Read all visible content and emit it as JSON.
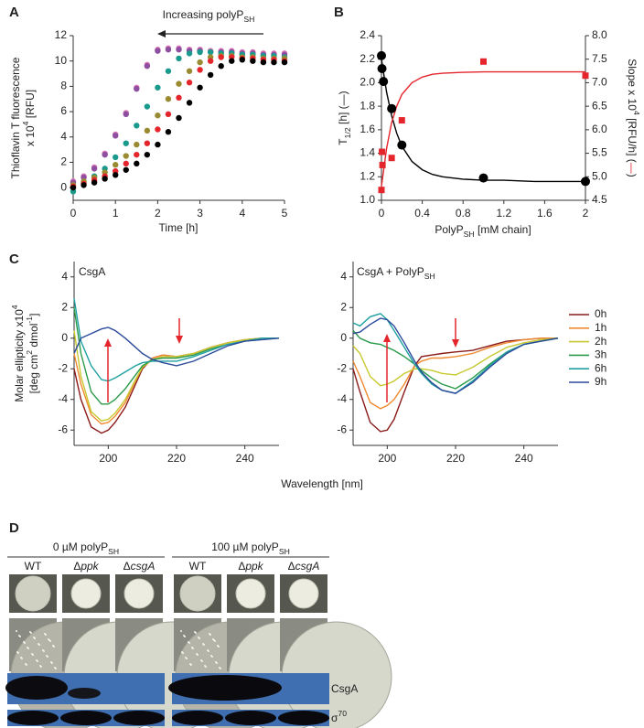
{
  "chart_data": [
    {
      "panel": "A",
      "type": "scatter",
      "x": [
        0,
        0.25,
        0.5,
        0.75,
        1,
        1.25,
        1.5,
        1.75,
        2,
        2.25,
        2.5,
        2.75,
        3,
        3.25,
        3.5,
        3.75,
        4,
        4.25,
        4.5,
        4.75,
        5
      ],
      "series": [
        {
          "color": "#d873b5",
          "values": [
            0.5,
            0.9,
            1.6,
            2.7,
            4.2,
            5.9,
            7.9,
            9.7,
            10.9,
            11,
            11,
            10.9,
            10.9,
            10.8,
            10.8,
            10.8,
            10.7,
            10.7,
            10.6,
            10.6,
            10.6
          ]
        },
        {
          "color": "#8e4fa0",
          "values": [
            0.4,
            0.8,
            1.5,
            2.6,
            4.1,
            5.8,
            7.8,
            9.6,
            10.8,
            10.9,
            10.9,
            10.8,
            10.8,
            10.7,
            10.7,
            10.7,
            10.6,
            10.6,
            10.5,
            10.5,
            10.5
          ]
        },
        {
          "color": "#1a9a8c",
          "values": [
            -0.3,
            0.4,
            0.9,
            1.5,
            2.4,
            3.5,
            4.9,
            6.4,
            7.9,
            9.2,
            10.2,
            10.6,
            10.7,
            10.7,
            10.6,
            10.6,
            10.5,
            10.5,
            10.4,
            10.4,
            10.3
          ]
        },
        {
          "color": "#9a8a32",
          "values": [
            0.2,
            0.5,
            0.8,
            1.2,
            1.8,
            2.5,
            3.4,
            4.5,
            5.7,
            7,
            8.2,
            9.2,
            9.9,
            10.3,
            10.4,
            10.4,
            10.3,
            10.3,
            10.2,
            10.2,
            10.2
          ]
        },
        {
          "color": "#e4262c",
          "values": [
            0.1,
            0.3,
            0.6,
            0.9,
            1.3,
            1.9,
            2.6,
            3.5,
            4.6,
            5.8,
            7.1,
            8.3,
            9.3,
            10,
            10.3,
            10.3,
            10.2,
            10.2,
            10.1,
            10.1,
            10
          ]
        },
        {
          "color": "#000000",
          "values": [
            0,
            0.2,
            0.4,
            0.7,
            1,
            1.4,
            1.9,
            2.6,
            3.4,
            4.4,
            5.5,
            6.7,
            7.9,
            8.9,
            9.6,
            10,
            10.1,
            10,
            9.9,
            9.9,
            9.9
          ]
        }
      ],
      "xlim": [
        0,
        5
      ],
      "xticks": [
        0,
        1,
        2,
        3,
        4,
        5
      ],
      "ylim": [
        -1,
        12
      ],
      "yticks": [
        0,
        2,
        4,
        6,
        8,
        10,
        12
      ],
      "xlabel": "Time [h]",
      "ylabel": [
        "Thioflavin T fluorescence",
        [
          "x 10",
          {
            "sup": "4"
          },
          " [RFU]"
        ]
      ],
      "annotation": [
        "Increasing polyP",
        {
          "sub": "SH"
        }
      ]
    },
    {
      "panel": "B",
      "type": "scatter",
      "series": [
        {
          "type": "line",
          "color": "#000000",
          "x": [
            0,
            0.05,
            0.1,
            0.15,
            0.2,
            0.3,
            0.4,
            0.5,
            0.6,
            0.8,
            1,
            1.2,
            1.5,
            2
          ],
          "values": [
            2.2,
            1.92,
            1.72,
            1.57,
            1.46,
            1.33,
            1.26,
            1.22,
            1.2,
            1.18,
            1.17,
            1.17,
            1.16,
            1.16
          ]
        },
        {
          "type": "line",
          "color": "#e4262c",
          "axis": "y2",
          "x": [
            0,
            0.05,
            0.1,
            0.15,
            0.2,
            0.3,
            0.4,
            0.5,
            0.6,
            0.8,
            1,
            1.2,
            1.5,
            2
          ],
          "values": [
            4.8,
            5.6,
            6.15,
            6.5,
            6.75,
            7,
            7.12,
            7.18,
            7.2,
            7.22,
            7.23,
            7.23,
            7.23,
            7.23
          ]
        },
        {
          "color": "#000000",
          "marker": "circle",
          "x": [
            0,
            0.005,
            0.02,
            0.1,
            0.2,
            1,
            2
          ],
          "values": [
            2.23,
            2.12,
            2.01,
            1.78,
            1.47,
            1.19,
            1.16
          ]
        },
        {
          "color": "#e4262c",
          "marker": "square",
          "axis": "y2",
          "x": [
            0,
            0.005,
            0.01,
            0.1,
            0.2,
            1,
            2
          ],
          "values": [
            4.72,
            5.53,
            5.25,
            5.4,
            6.2,
            7.45,
            7.15
          ]
        }
      ],
      "xlim": [
        0,
        2
      ],
      "xticks": [
        0,
        0.4,
        0.8,
        1.2,
        1.6,
        2
      ],
      "ylim": [
        1,
        2.4
      ],
      "yticks": [
        {
          "value": 1,
          "label": "1.0"
        },
        1.2,
        1.4,
        1.6,
        1.8,
        {
          "value": 2,
          "label": "2.0"
        },
        2.2,
        2.4
      ],
      "y2lim": [
        4.5,
        8
      ],
      "y2ticks": [
        4.5,
        {
          "value": 5,
          "label": "5.0"
        },
        5.5,
        {
          "value": 6,
          "label": "6.0"
        },
        6.5,
        {
          "value": 7,
          "label": "7.0"
        },
        7.5,
        {
          "value": 8,
          "label": "8.0"
        }
      ],
      "xlabel": [
        "PolyP",
        {
          "sub": "SH"
        },
        " [mM chain]"
      ],
      "ylabel": [
        [
          "T",
          {
            "sub": "1/2"
          },
          " [h]  (—)"
        ]
      ],
      "y2label": [
        [
          "Slope x 10",
          {
            "sup": "4"
          },
          " [RFU/h]  (",
          {
            "t": "—",
            "color": "#e4262c"
          },
          ")"
        ]
      ]
    },
    {
      "panel": "C",
      "type": "line",
      "title": "CsgA",
      "x": [
        190,
        192,
        195,
        198,
        200,
        202,
        205,
        208,
        210,
        213,
        216,
        220,
        225,
        230,
        235,
        240,
        245,
        250
      ],
      "series": [
        {
          "color": "#8b1a1a",
          "values": [
            -2,
            -4,
            -5.8,
            -6.2,
            -6,
            -5.5,
            -4.5,
            -3,
            -2,
            -1.3,
            -1.1,
            -1.2,
            -1,
            -0.6,
            -0.3,
            -0.1,
            0,
            0
          ]
        },
        {
          "color": "#f08a30",
          "values": [
            -1,
            -3,
            -5,
            -5.6,
            -5.5,
            -5.1,
            -4.2,
            -2.8,
            -1.9,
            -1.3,
            -1.1,
            -1.2,
            -1,
            -0.6,
            -0.3,
            -0.1,
            0,
            0
          ]
        },
        {
          "color": "#c8c830",
          "values": [
            0.5,
            -2.5,
            -4.8,
            -5.4,
            -5.3,
            -4.9,
            -4,
            -2.7,
            -1.9,
            -1.4,
            -1.2,
            -1.2,
            -1,
            -0.6,
            -0.3,
            -0.1,
            0,
            0
          ]
        },
        {
          "color": "#2a9a4a",
          "values": [
            2,
            -1,
            -3.5,
            -4.3,
            -4.3,
            -4,
            -3.3,
            -2.4,
            -1.8,
            -1.4,
            -1.3,
            -1.3,
            -1.1,
            -0.7,
            -0.4,
            -0.2,
            0,
            0
          ]
        },
        {
          "color": "#20a0a0",
          "values": [
            2.6,
            -0.2,
            -1.8,
            -2.7,
            -2.8,
            -2.6,
            -2.2,
            -1.8,
            -1.6,
            -1.5,
            -1.5,
            -1.5,
            -1.2,
            -0.8,
            -0.4,
            -0.2,
            0,
            0
          ]
        },
        {
          "color": "#2a4a9a",
          "values": [
            -1,
            0,
            0.3,
            0.6,
            0.7,
            0.5,
            0,
            -0.6,
            -1,
            -1.4,
            -1.6,
            -1.8,
            -1.5,
            -1,
            -0.5,
            -0.2,
            -0.1,
            0
          ]
        }
      ],
      "xlim": [
        190,
        250
      ],
      "xticks": [
        200,
        220,
        240
      ],
      "ylim": [
        -7,
        5
      ],
      "yticks": [
        -6,
        -4,
        -2,
        0,
        2,
        4
      ],
      "xlabel": "Wavelength [nm]",
      "ylabel": [
        [
          "Molar ellipticity x10",
          {
            "sup": "4"
          }
        ],
        [
          "[deg cm",
          {
            "sup": "2"
          },
          " dmol",
          {
            "sup": "-1"
          },
          "]"
        ]
      ]
    },
    {
      "type": "line",
      "title": [
        "CsgA + PolyP",
        {
          "sub": "SH"
        }
      ],
      "x": [
        190,
        192,
        195,
        198,
        200,
        202,
        205,
        208,
        210,
        213,
        216,
        220,
        225,
        230,
        235,
        240,
        245,
        250
      ],
      "series": [
        {
          "name": "0h",
          "color": "#8b1a1a",
          "values": [
            -2,
            -3.5,
            -5.5,
            -6.1,
            -6,
            -5.3,
            -3.5,
            -1.8,
            -1.2,
            -1.1,
            -1,
            -0.9,
            -0.8,
            -0.5,
            -0.2,
            -0.1,
            0,
            0
          ]
        },
        {
          "name": "1h",
          "color": "#f08a30",
          "values": [
            -1.5,
            -2.5,
            -4.2,
            -4.6,
            -4.4,
            -4,
            -3,
            -1.8,
            -1.5,
            -1.3,
            -1.3,
            -1.2,
            -1,
            -0.6,
            -0.3,
            -0.1,
            0,
            0
          ]
        },
        {
          "name": "2h",
          "color": "#c8c830",
          "values": [
            -0.5,
            -1,
            -2.5,
            -3.1,
            -3,
            -2.8,
            -2.3,
            -2,
            -2,
            -2.1,
            -2.3,
            -2.4,
            -1.9,
            -1.2,
            -0.6,
            -0.3,
            -0.1,
            0
          ]
        },
        {
          "name": "3h",
          "color": "#2a9a4a",
          "values": [
            0.5,
            0,
            -0.3,
            -0.4,
            -0.6,
            -0.8,
            -1.2,
            -1.7,
            -2.1,
            -2.6,
            -3,
            -3.3,
            -2.6,
            -1.7,
            -0.9,
            -0.4,
            -0.2,
            0
          ]
        },
        {
          "name": "6h",
          "color": "#20a0a0",
          "values": [
            1,
            0.8,
            1.4,
            1.6,
            1.2,
            0.5,
            -0.6,
            -1.7,
            -2.3,
            -3,
            -3.4,
            -3.6,
            -2.8,
            -1.8,
            -0.9,
            -0.4,
            -0.2,
            0
          ]
        },
        {
          "name": "9h",
          "color": "#2a4a9a",
          "values": [
            0.3,
            0.4,
            0.9,
            1.3,
            1.2,
            0.8,
            -0.3,
            -1.5,
            -2.2,
            -2.9,
            -3.4,
            -3.6,
            -2.9,
            -1.9,
            -1,
            -0.4,
            -0.2,
            0
          ]
        }
      ],
      "xlim": [
        190,
        250
      ],
      "xticks": [
        200,
        220,
        240
      ],
      "ylim": [
        -7,
        5
      ],
      "yticks": [
        -6,
        -4,
        -2,
        0,
        2,
        4
      ],
      "legend": "right"
    }
  ],
  "panel_d": {
    "panel": "D",
    "groups": [
      {
        "label": [
          "0 µM polyP",
          {
            "sub": "SH"
          }
        ],
        "columns": [
          "WT",
          [
            "Δ",
            {
              "i": "ppk"
            }
          ],
          [
            "Δ",
            {
              "i": "csgA"
            }
          ]
        ]
      },
      {
        "label": [
          "100 µM polyP",
          {
            "sub": "SH"
          }
        ],
        "columns": [
          "WT",
          [
            "Δ",
            {
              "i": "ppk"
            }
          ],
          [
            "Δ",
            {
              "i": "csgA"
            }
          ]
        ]
      }
    ],
    "blot_labels": [
      "CsgA",
      [
        "σ",
        {
          "sup": "70"
        }
      ]
    ]
  }
}
